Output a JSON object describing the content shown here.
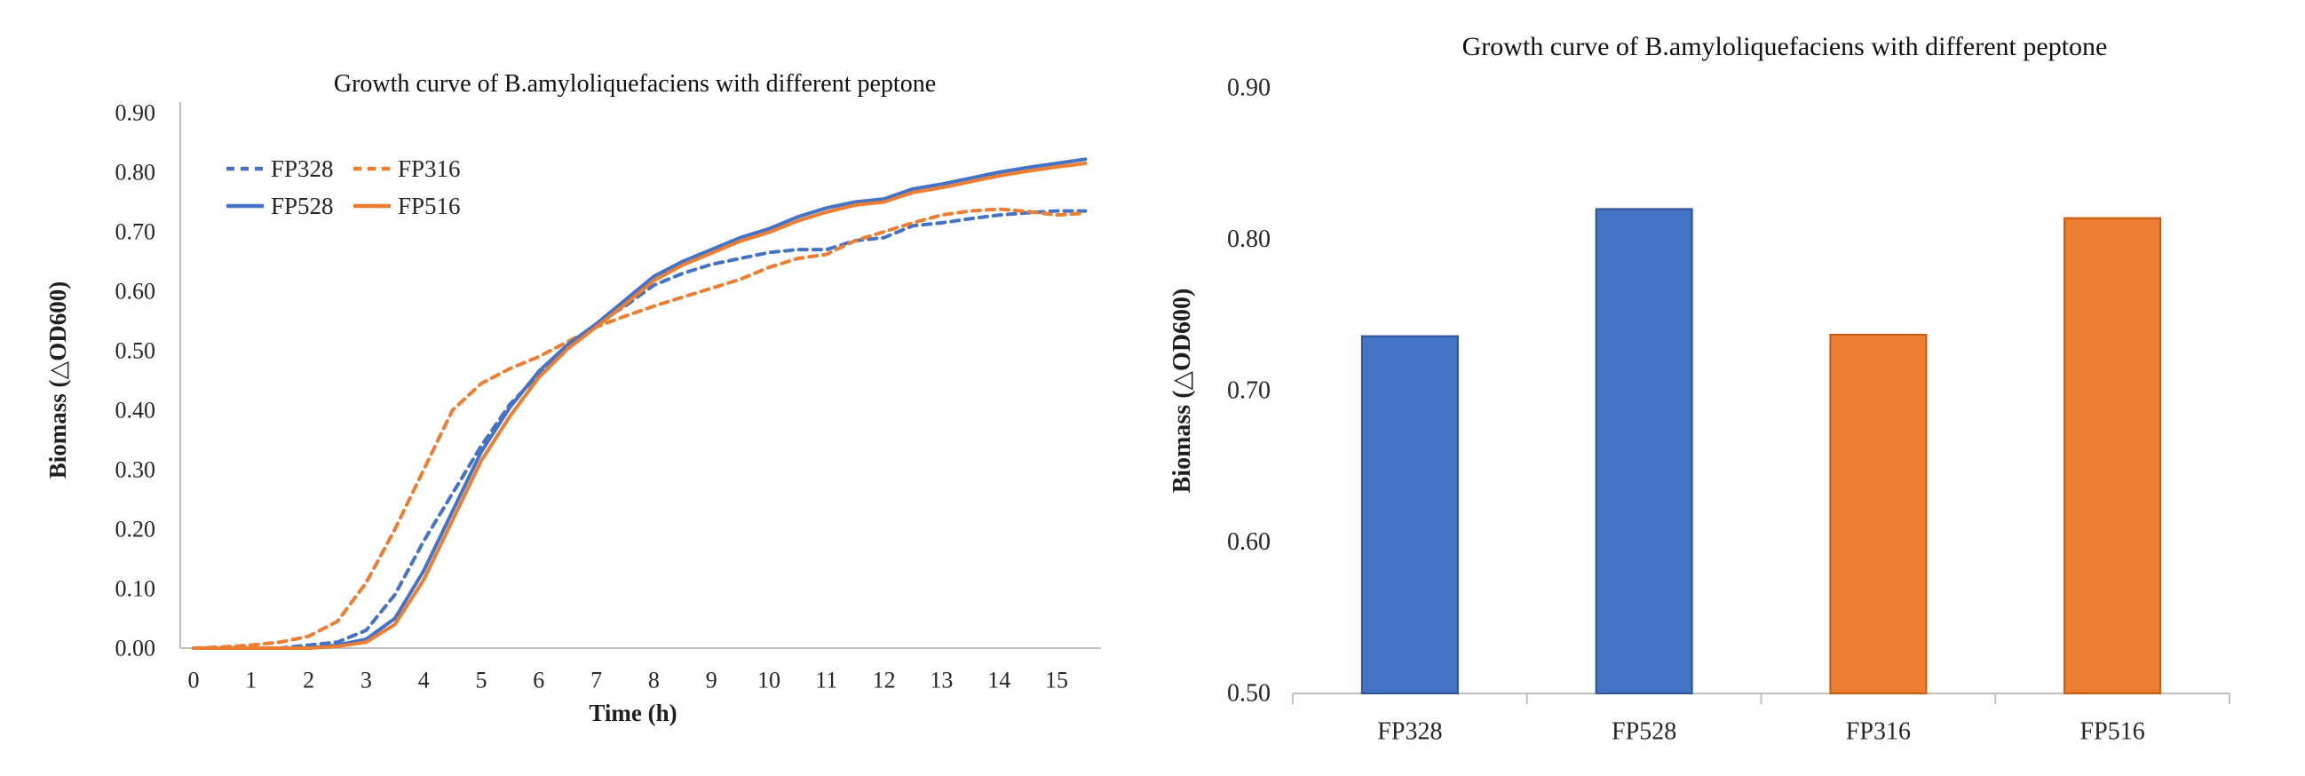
{
  "figure": {
    "background": "#ffffff",
    "panel_count": 2
  },
  "chart_data": [
    {
      "type": "line",
      "title": "Growth curve of B.amyloliquefaciens with different peptone",
      "xlabel": "Time (h)",
      "ylabel": "Biomass (△OD600)",
      "xlim": [
        0,
        15.75
      ],
      "ylim": [
        0,
        0.9
      ],
      "x_ticks": [
        0,
        1,
        2,
        3,
        4,
        5,
        6,
        7,
        8,
        9,
        10,
        11,
        12,
        13,
        14,
        15
      ],
      "y_ticks": [
        0,
        0.1,
        0.2,
        0.3,
        0.4,
        0.5,
        0.6,
        0.7,
        0.8,
        0.9
      ],
      "y_tick_format": "0.00",
      "grid": false,
      "legend_position": "inside top-left",
      "legend_rows": [
        [
          "FP328",
          "FP316"
        ],
        [
          "FP528",
          "FP516"
        ]
      ],
      "x": [
        0,
        0.5,
        1,
        1.5,
        2,
        2.5,
        3,
        3.5,
        4,
        4.5,
        5,
        5.5,
        6,
        6.5,
        7,
        7.5,
        8,
        8.5,
        9,
        9.5,
        10,
        10.5,
        11,
        11.5,
        12,
        12.5,
        13,
        13.5,
        14,
        14.5,
        15,
        15.5
      ],
      "series": [
        {
          "name": "FP328",
          "color": "#4472C4",
          "style": "dashed",
          "values": [
            0,
            0,
            0,
            0,
            0.005,
            0.01,
            0.03,
            0.09,
            0.18,
            0.26,
            0.34,
            0.41,
            0.46,
            0.505,
            0.545,
            0.575,
            0.61,
            0.63,
            0.645,
            0.655,
            0.665,
            0.67,
            0.67,
            0.685,
            0.69,
            0.71,
            0.715,
            0.722,
            0.728,
            0.732,
            0.735,
            0.735
          ]
        },
        {
          "name": "FP316",
          "color": "#ED7D31",
          "style": "dashed",
          "values": [
            0,
            0.002,
            0.005,
            0.01,
            0.02,
            0.045,
            0.11,
            0.2,
            0.3,
            0.4,
            0.445,
            0.47,
            0.49,
            0.515,
            0.54,
            0.558,
            0.575,
            0.59,
            0.605,
            0.62,
            0.64,
            0.655,
            0.662,
            0.685,
            0.7,
            0.715,
            0.728,
            0.735,
            0.738,
            0.734,
            0.728,
            0.731
          ]
        },
        {
          "name": "FP528",
          "color": "#4472C4",
          "style": "solid",
          "values": [
            0,
            0,
            0,
            0,
            0,
            0.005,
            0.015,
            0.05,
            0.13,
            0.23,
            0.33,
            0.405,
            0.465,
            0.51,
            0.545,
            0.585,
            0.625,
            0.65,
            0.67,
            0.69,
            0.705,
            0.725,
            0.74,
            0.75,
            0.755,
            0.772,
            0.78,
            0.79,
            0.8,
            0.808,
            0.815,
            0.822
          ]
        },
        {
          "name": "FP516",
          "color": "#ED7D31",
          "style": "solid",
          "values": [
            0,
            0,
            0,
            0,
            0,
            0.003,
            0.01,
            0.04,
            0.115,
            0.215,
            0.315,
            0.39,
            0.455,
            0.503,
            0.54,
            0.578,
            0.618,
            0.644,
            0.664,
            0.684,
            0.699,
            0.718,
            0.733,
            0.745,
            0.75,
            0.766,
            0.774,
            0.784,
            0.794,
            0.802,
            0.809,
            0.815
          ]
        }
      ]
    },
    {
      "type": "bar",
      "title": "Growth curve of B.amyloliquefaciens with different peptone",
      "xlabel": "",
      "ylabel": "Biomass (△OD600)",
      "categories": [
        "FP328",
        "FP528",
        "FP316",
        "FP516"
      ],
      "values": [
        0.736,
        0.82,
        0.737,
        0.814
      ],
      "bar_colors": [
        "#4472C4",
        "#4472C4",
        "#ED7D31",
        "#ED7D31"
      ],
      "bar_border_colors": [
        "#2F5597",
        "#2F5597",
        "#C55A11",
        "#C55A11"
      ],
      "ylim": [
        0.5,
        0.9
      ],
      "y_ticks": [
        0.5,
        0.6,
        0.7,
        0.8,
        0.9
      ],
      "y_tick_format": "0.00",
      "grid": false,
      "legend_position": "none"
    }
  ]
}
